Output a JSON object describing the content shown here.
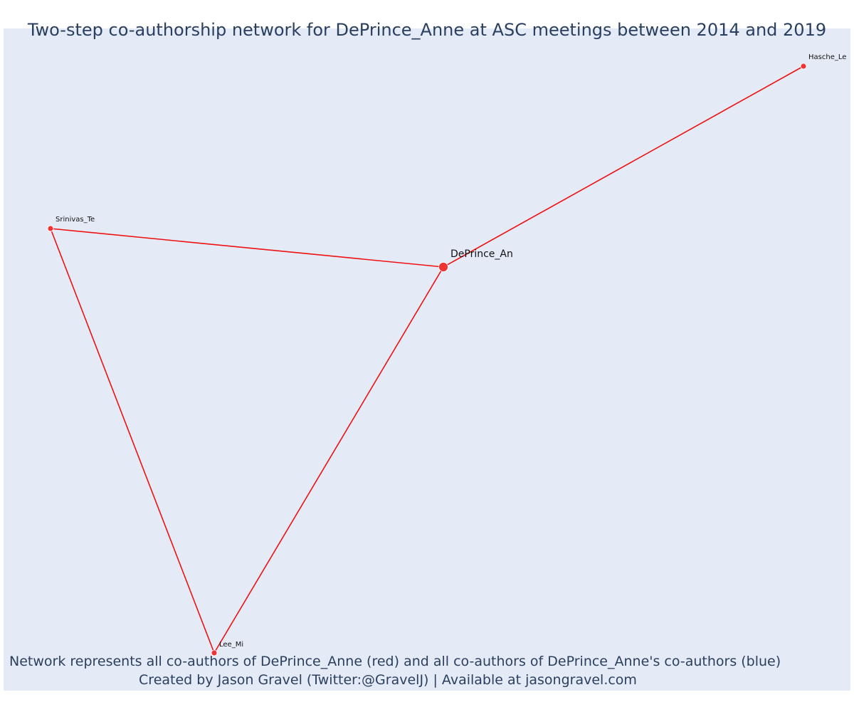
{
  "title": "Two-step co-authorship network for DePrince_Anne at ASC meetings between 2014 and 2019",
  "caption": {
    "line1": "Network represents all co-authors of DePrince_Anne (red) and all co-authors of DePrince_Anne's co-authors (blue)",
    "line2": "Created by Jason Gravel (Twitter:@GravelJ) | Available at jasongravel.com"
  },
  "colors": {
    "background": "#e5ebf6",
    "edge": "#ee1111",
    "node": "#ef3333",
    "text": "#2a3f5f"
  },
  "network": {
    "nodes": [
      {
        "id": "DePrince_An",
        "label": "DePrince_An",
        "role": "focal"
      },
      {
        "id": "Hasche_Le",
        "label": "Hasche_Le",
        "role": "coauthor"
      },
      {
        "id": "Srinivas_Te",
        "label": "Srinivas_Te",
        "role": "coauthor"
      },
      {
        "id": "Lee_Mi",
        "label": "Lee_Mi",
        "role": "coauthor"
      }
    ],
    "edges": [
      {
        "source": "DePrince_An",
        "target": "Hasche_Le"
      },
      {
        "source": "DePrince_An",
        "target": "Srinivas_Te"
      },
      {
        "source": "DePrince_An",
        "target": "Lee_Mi"
      },
      {
        "source": "Srinivas_Te",
        "target": "Lee_Mi"
      }
    ]
  }
}
